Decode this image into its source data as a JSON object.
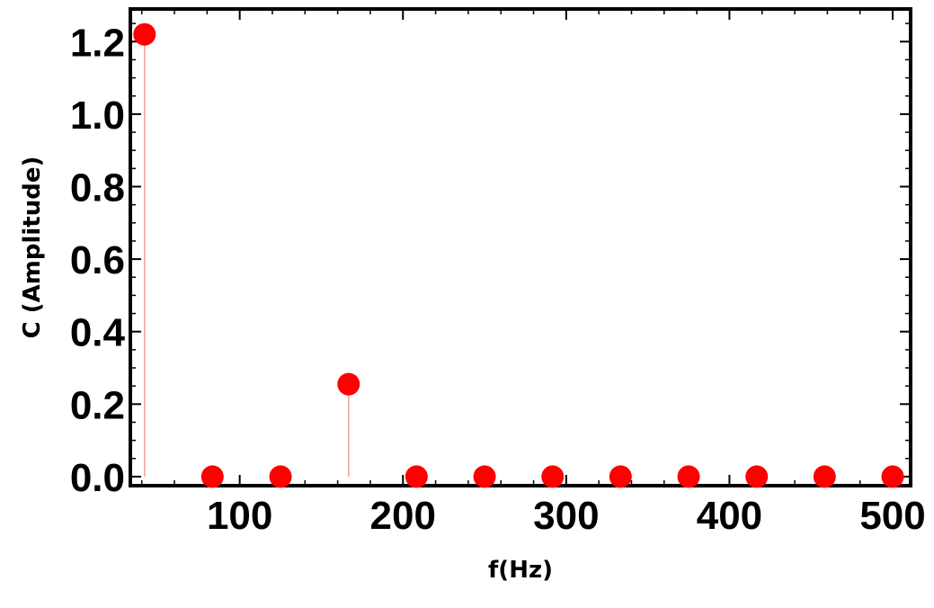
{
  "chart_data": {
    "type": "scatter",
    "style": "stem",
    "title": "",
    "xlabel": "f(Hz)",
    "ylabel": "C (Amplitude)",
    "xlim": [
      33,
      511
    ],
    "ylim": [
      -0.025,
      1.29
    ],
    "x_ticks": [
      100,
      200,
      300,
      400,
      500
    ],
    "y_ticks": [
      0.0,
      0.2,
      0.4,
      0.6,
      0.8,
      1.0,
      1.2
    ],
    "y_tick_labels": [
      "0.0",
      "0.2",
      "0.4",
      "0.6",
      "0.8",
      "1.0",
      "1.2"
    ],
    "x": [
      41.7,
      83.3,
      125,
      166.7,
      208.3,
      250,
      291.7,
      333.3,
      375,
      416.7,
      458.3,
      500
    ],
    "y": [
      1.22,
      0.0,
      0.0,
      0.255,
      0.0,
      0.0,
      0.0,
      0.0,
      0.0,
      0.0,
      0.0,
      0.0
    ],
    "grid": false,
    "colors": {
      "marker": "#ff0000",
      "stem": "#f2a0a0",
      "frame": "#000000"
    }
  }
}
